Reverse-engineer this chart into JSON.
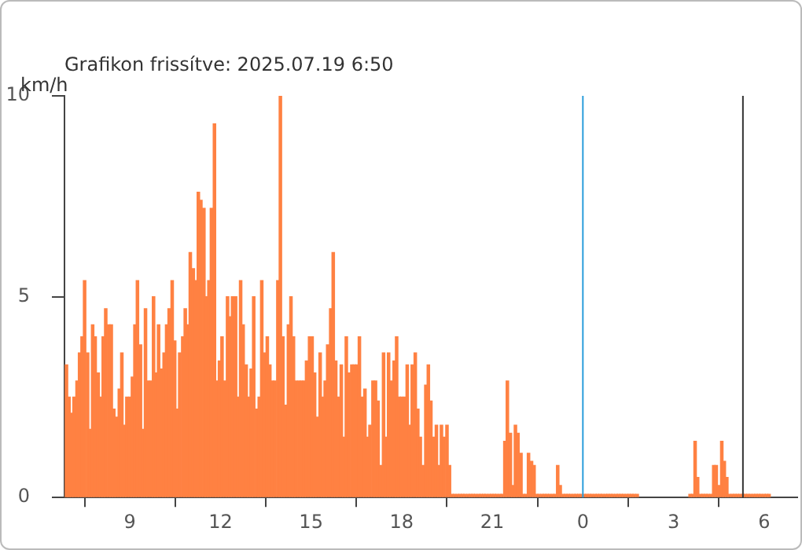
{
  "chart_data": {
    "type": "bar",
    "title": "Grafikon frissítve: 2025.07.19 6:50",
    "ylabel": "km/h",
    "x": [
      "2025-07-18T06:54",
      "2025-07-18T06:59",
      "2025-07-18T07:04",
      "2025-07-18T07:09",
      "2025-07-18T07:15",
      "2025-07-18T07:20",
      "2025-07-18T07:25",
      "2025-07-18T07:30",
      "2025-07-18T07:36",
      "2025-07-18T07:41",
      "2025-07-18T07:46",
      "2025-07-18T07:51",
      "2025-07-18T07:57",
      "2025-07-18T08:02",
      "2025-07-18T08:07",
      "2025-07-18T08:12",
      "2025-07-18T08:18",
      "2025-07-18T08:23",
      "2025-07-18T08:28",
      "2025-07-18T08:33",
      "2025-07-18T08:39",
      "2025-07-18T08:44",
      "2025-07-18T08:49",
      "2025-07-18T08:54",
      "2025-07-18T09:00",
      "2025-07-18T09:05",
      "2025-07-18T09:10",
      "2025-07-18T09:15",
      "2025-07-18T09:21",
      "2025-07-18T09:26",
      "2025-07-18T09:31",
      "2025-07-18T09:36",
      "2025-07-18T09:42",
      "2025-07-18T09:47",
      "2025-07-18T09:52",
      "2025-07-18T09:57",
      "2025-07-18T10:03",
      "2025-07-18T10:08",
      "2025-07-18T10:13",
      "2025-07-18T10:18",
      "2025-07-18T10:24",
      "2025-07-18T10:29",
      "2025-07-18T10:34",
      "2025-07-18T10:39",
      "2025-07-18T10:45",
      "2025-07-18T10:50",
      "2025-07-18T10:55",
      "2025-07-18T11:00",
      "2025-07-18T11:06",
      "2025-07-18T11:11",
      "2025-07-18T11:16",
      "2025-07-18T11:21",
      "2025-07-18T11:27",
      "2025-07-18T11:32",
      "2025-07-18T11:37",
      "2025-07-18T11:42",
      "2025-07-18T11:48",
      "2025-07-18T11:53",
      "2025-07-18T11:58",
      "2025-07-18T12:03",
      "2025-07-18T12:09",
      "2025-07-18T12:14",
      "2025-07-18T12:19",
      "2025-07-18T12:24",
      "2025-07-18T12:30",
      "2025-07-18T12:35",
      "2025-07-18T12:40",
      "2025-07-18T12:45",
      "2025-07-18T12:51",
      "2025-07-18T12:56",
      "2025-07-18T13:01",
      "2025-07-18T13:06",
      "2025-07-18T13:12",
      "2025-07-18T13:17",
      "2025-07-18T13:22",
      "2025-07-18T13:27",
      "2025-07-18T13:33",
      "2025-07-18T13:38",
      "2025-07-18T13:43",
      "2025-07-18T13:48",
      "2025-07-18T13:54",
      "2025-07-18T13:59",
      "2025-07-18T14:04",
      "2025-07-18T14:09",
      "2025-07-18T14:15",
      "2025-07-18T14:20",
      "2025-07-18T14:25",
      "2025-07-18T14:30",
      "2025-07-18T14:36",
      "2025-07-18T14:41",
      "2025-07-18T14:46",
      "2025-07-18T14:51",
      "2025-07-18T14:57",
      "2025-07-18T15:02",
      "2025-07-18T15:07",
      "2025-07-18T15:12",
      "2025-07-18T15:18",
      "2025-07-18T15:23",
      "2025-07-18T15:28",
      "2025-07-18T15:33",
      "2025-07-18T15:39",
      "2025-07-18T15:44",
      "2025-07-18T15:49",
      "2025-07-18T15:54",
      "2025-07-18T16:00",
      "2025-07-18T16:05",
      "2025-07-18T16:10",
      "2025-07-18T16:15",
      "2025-07-18T16:21",
      "2025-07-18T16:26",
      "2025-07-18T16:31",
      "2025-07-18T16:36",
      "2025-07-18T16:42",
      "2025-07-18T16:47",
      "2025-07-18T16:52",
      "2025-07-18T16:57",
      "2025-07-18T17:03",
      "2025-07-18T17:08",
      "2025-07-18T17:13",
      "2025-07-18T17:18",
      "2025-07-18T17:24",
      "2025-07-18T17:29",
      "2025-07-18T17:34",
      "2025-07-18T17:39",
      "2025-07-18T17:45",
      "2025-07-18T17:50",
      "2025-07-18T17:55",
      "2025-07-18T18:00",
      "2025-07-18T18:06",
      "2025-07-18T18:11",
      "2025-07-18T18:16",
      "2025-07-18T18:21",
      "2025-07-18T18:27",
      "2025-07-18T18:32",
      "2025-07-18T18:37",
      "2025-07-18T18:42",
      "2025-07-18T18:48",
      "2025-07-18T18:53",
      "2025-07-18T18:58",
      "2025-07-18T19:03",
      "2025-07-18T19:09",
      "2025-07-18T19:14",
      "2025-07-18T19:19",
      "2025-07-18T19:24",
      "2025-07-18T19:30",
      "2025-07-18T19:35",
      "2025-07-18T19:40",
      "2025-07-18T19:45",
      "2025-07-18T19:51",
      "2025-07-18T19:56",
      "2025-07-18T20:01",
      "2025-07-18T20:06",
      "2025-07-18T20:12",
      "2025-07-18T20:17",
      "2025-07-18T20:22",
      "2025-07-18T20:27",
      "2025-07-18T20:33",
      "2025-07-18T20:38",
      "2025-07-18T20:43",
      "2025-07-18T20:48",
      "2025-07-18T20:54",
      "2025-07-18T20:59",
      "2025-07-18T21:04",
      "2025-07-18T21:09",
      "2025-07-18T21:15",
      "2025-07-18T21:20",
      "2025-07-18T21:25",
      "2025-07-18T21:30",
      "2025-07-18T21:36",
      "2025-07-18T21:41",
      "2025-07-18T21:46",
      "2025-07-18T21:51",
      "2025-07-18T21:57",
      "2025-07-18T22:02",
      "2025-07-18T22:07",
      "2025-07-18T22:12",
      "2025-07-18T22:18",
      "2025-07-18T22:23",
      "2025-07-18T22:28",
      "2025-07-18T22:33",
      "2025-07-18T22:39",
      "2025-07-18T22:44",
      "2025-07-18T22:49",
      "2025-07-18T22:54",
      "2025-07-18T23:00",
      "2025-07-18T23:05",
      "2025-07-18T23:10",
      "2025-07-18T23:15",
      "2025-07-18T23:21",
      "2025-07-18T23:26",
      "2025-07-18T23:31",
      "2025-07-18T23:36",
      "2025-07-18T23:42",
      "2025-07-18T23:47",
      "2025-07-18T23:52",
      "2025-07-18T23:57",
      "2025-07-19T00:03",
      "2025-07-19T00:08",
      "2025-07-19T00:13",
      "2025-07-19T00:18",
      "2025-07-19T00:24",
      "2025-07-19T00:29",
      "2025-07-19T00:34",
      "2025-07-19T00:39",
      "2025-07-19T00:45",
      "2025-07-19T00:50",
      "2025-07-19T00:55",
      "2025-07-19T01:00",
      "2025-07-19T01:06",
      "2025-07-19T01:11",
      "2025-07-19T01:16",
      "2025-07-19T01:21",
      "2025-07-19T01:27",
      "2025-07-19T01:32",
      "2025-07-19T01:37",
      "2025-07-19T01:42",
      "2025-07-19T01:48",
      "2025-07-19T03:33",
      "2025-07-19T03:38",
      "2025-07-19T03:43",
      "2025-07-19T03:48",
      "2025-07-19T03:54",
      "2025-07-19T03:59",
      "2025-07-19T04:04",
      "2025-07-19T04:09",
      "2025-07-19T04:15",
      "2025-07-19T04:20",
      "2025-07-19T04:25",
      "2025-07-19T04:30",
      "2025-07-19T04:36",
      "2025-07-19T04:41",
      "2025-07-19T04:46",
      "2025-07-19T04:51",
      "2025-07-19T04:57",
      "2025-07-19T05:02",
      "2025-07-19T05:07",
      "2025-07-19T05:12",
      "2025-07-19T05:18",
      "2025-07-19T05:23",
      "2025-07-19T05:28",
      "2025-07-19T05:33",
      "2025-07-19T05:39",
      "2025-07-19T05:44",
      "2025-07-19T05:49",
      "2025-07-19T05:54",
      "2025-07-19T06:00",
      "2025-07-19T06:05",
      "2025-07-19T06:10"
    ],
    "series": [
      {
        "color": "#ff8142",
        "values": [
          3.3,
          2.5,
          2.1,
          2.5,
          2.9,
          3.6,
          4.0,
          5.4,
          3.6,
          1.7,
          4.3,
          4.0,
          3.1,
          2.5,
          4.0,
          4.7,
          4.3,
          4.3,
          2.2,
          2.0,
          2.7,
          3.6,
          1.8,
          2.5,
          2.5,
          3.0,
          4.3,
          5.4,
          3.8,
          1.7,
          4.7,
          2.9,
          2.9,
          5.0,
          3.1,
          4.3,
          3.2,
          3.6,
          4.3,
          4.7,
          5.4,
          3.9,
          2.2,
          3.6,
          4.0,
          4.7,
          4.3,
          6.1,
          5.7,
          5.4,
          7.6,
          7.4,
          7.2,
          5.0,
          5.4,
          7.2,
          9.3,
          2.9,
          3.4,
          4.0,
          2.9,
          5.0,
          4.5,
          5.0,
          5.0,
          2.5,
          5.4,
          4.3,
          3.3,
          2.5,
          3.2,
          5.0,
          2.2,
          2.5,
          5.4,
          3.6,
          4.0,
          3.3,
          2.9,
          2.9,
          5.4,
          10.0,
          4.0,
          2.3,
          4.3,
          5.0,
          4.0,
          2.9,
          2.9,
          2.9,
          2.9,
          3.4,
          4.0,
          4.0,
          3.1,
          2.0,
          3.6,
          2.5,
          2.9,
          3.8,
          4.7,
          6.1,
          3.4,
          2.5,
          3.3,
          1.5,
          4.0,
          3.1,
          3.3,
          3.3,
          3.3,
          4.0,
          2.5,
          2.7,
          1.5,
          1.8,
          2.9,
          2.9,
          2.4,
          0.8,
          3.6,
          1.5,
          3.6,
          2.9,
          3.4,
          4.0,
          2.5,
          2.5,
          2.5,
          3.3,
          1.8,
          3.3,
          3.6,
          2.2,
          1.5,
          0.8,
          2.8,
          3.3,
          2.4,
          1.5,
          1.8,
          0.8,
          1.8,
          1.5,
          1.8,
          0.8,
          0,
          0,
          0,
          0,
          0,
          0,
          0,
          0,
          0,
          0,
          0,
          0,
          0,
          0,
          0,
          0,
          0,
          0,
          0,
          0,
          1.4,
          2.9,
          1.6,
          0.3,
          1.8,
          1.6,
          1.1,
          0,
          0,
          1.1,
          0.9,
          0.8,
          0,
          0,
          0,
          0,
          0,
          0,
          0,
          0,
          0.8,
          0.3,
          0,
          0,
          0,
          0,
          0,
          0,
          0,
          0,
          0,
          0,
          0,
          0,
          0,
          0,
          0,
          0,
          0,
          0,
          0,
          0,
          0,
          0,
          0,
          0,
          0,
          0,
          0,
          0,
          0,
          0,
          0,
          1.4,
          0.5,
          0,
          0,
          0,
          0,
          0,
          0.8,
          0.8,
          0.3,
          1.4,
          0.9,
          0.5,
          0,
          0,
          0,
          0,
          0,
          0,
          0,
          0,
          0,
          0,
          0,
          0,
          0,
          0,
          0,
          0
        ]
      }
    ],
    "xlim": [
      "2025-07-18T06:50",
      "2025-07-19T07:06"
    ],
    "xticks": [
      {
        "value": "2025-07-18T09:00",
        "label": "9"
      },
      {
        "value": "2025-07-18T12:00",
        "label": "12"
      },
      {
        "value": "2025-07-18T15:00",
        "label": "15"
      },
      {
        "value": "2025-07-18T18:00",
        "label": "18"
      },
      {
        "value": "2025-07-18T21:00",
        "label": "21"
      },
      {
        "value": "2025-07-19T00:00",
        "label": "0"
      },
      {
        "value": "2025-07-19T03:00",
        "label": "3"
      },
      {
        "value": "2025-07-19T06:00",
        "label": "6"
      }
    ],
    "ylim": [
      0,
      10
    ],
    "yticks": [
      0,
      5,
      10
    ],
    "ref_lines": [
      {
        "axis": "x",
        "value": "2025-07-19T00:00",
        "color": "#2a9ddb"
      },
      {
        "axis": "x",
        "value": "2025-07-19T05:18",
        "color": "#333333"
      }
    ],
    "grid": false,
    "legend": false
  }
}
